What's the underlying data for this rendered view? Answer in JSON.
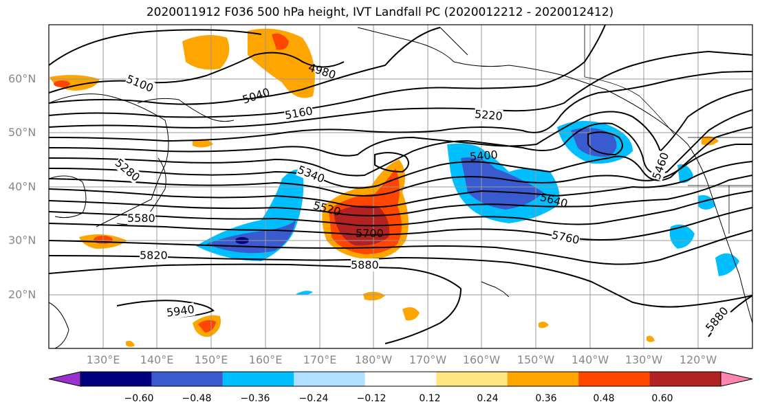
{
  "map": {
    "title": "2020011912 F036 500 hPa height, IVT Landfall PC (2020012212 - 2020012412)",
    "projection_extent": {
      "lon_min": 120,
      "lon_max": 250,
      "lat_min": 10,
      "lat_max": 70
    },
    "lat_labels": [
      "60°N",
      "50°N",
      "40°N",
      "30°N",
      "20°N"
    ],
    "lon_labels": [
      "130°E",
      "140°E",
      "150°E",
      "160°E",
      "170°E",
      "180°W",
      "170°W",
      "160°W",
      "150°W",
      "140°W",
      "130°W",
      "120°W"
    ],
    "contour_labels": [
      "5100",
      "4980",
      "5040",
      "5160",
      "5220",
      "5280",
      "5340",
      "5400",
      "5460",
      "5520",
      "5580",
      "5640",
      "5700",
      "5760",
      "5820",
      "5880",
      "5940",
      "5880"
    ],
    "colorbar": {
      "ticks": [
        "−0.60",
        "−0.48",
        "−0.36",
        "−0.24",
        "−0.12",
        "0.12",
        "0.24",
        "0.36",
        "0.48",
        "0.60"
      ],
      "colors": [
        "#9932cc",
        "#000080",
        "#3a5bd0",
        "#00bfff",
        "#b0e0ff",
        "#ffffff",
        "#ffe680",
        "#ffa500",
        "#ff4500",
        "#b22222",
        "#ff85b0"
      ]
    }
  }
}
